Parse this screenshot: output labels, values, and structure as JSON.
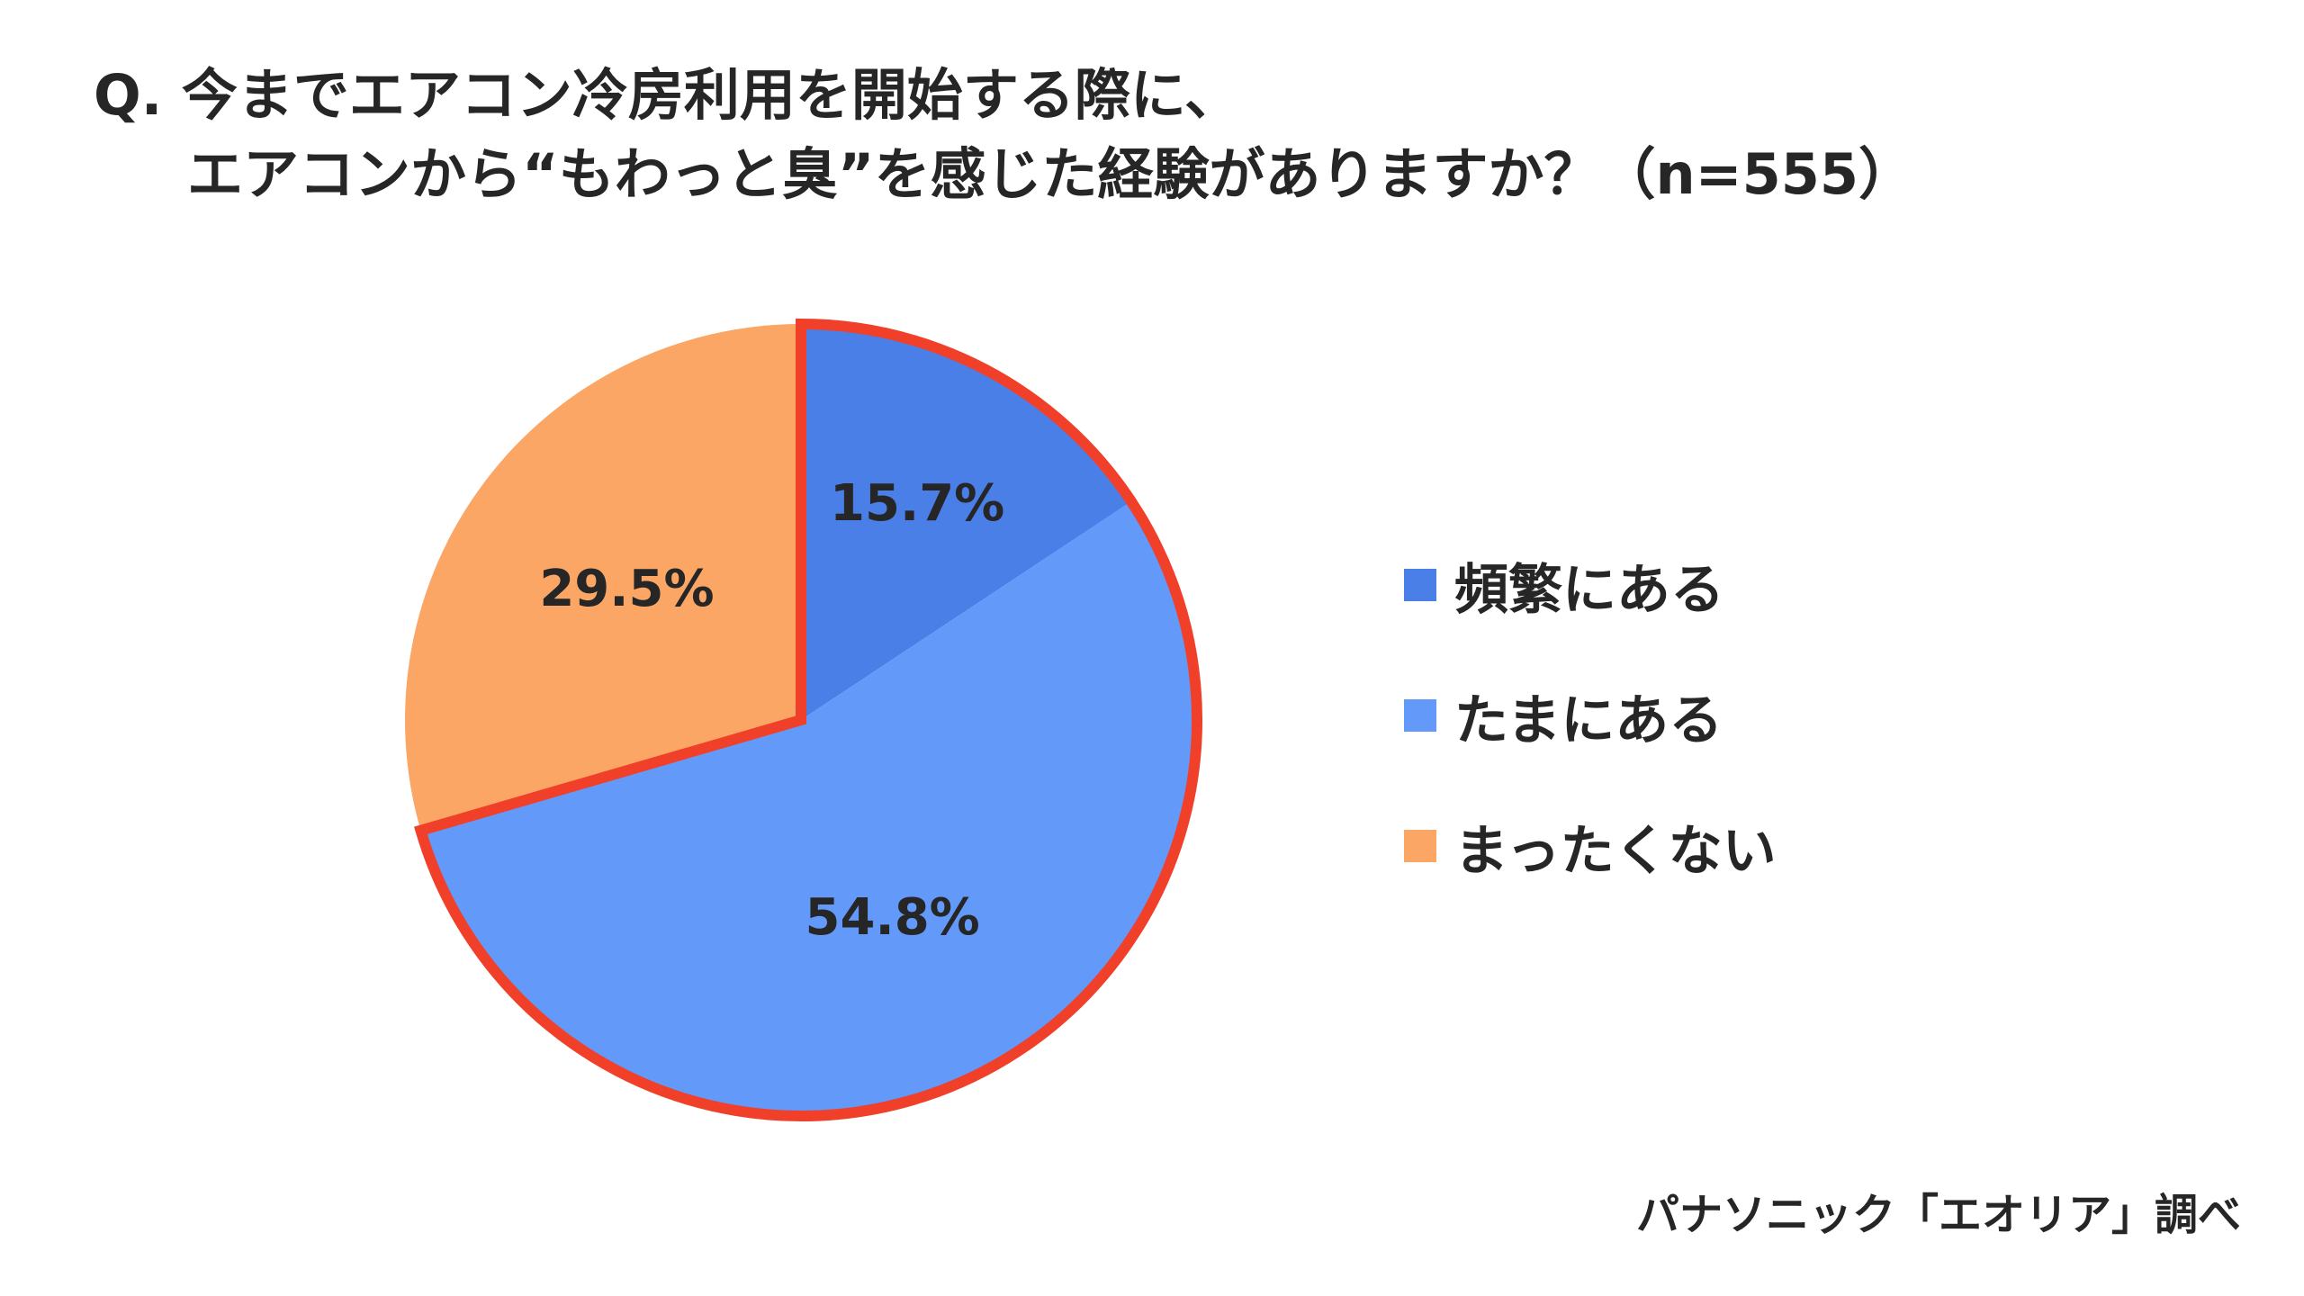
{
  "title": {
    "line1": "Q. 今までエアコン冷房利用を開始する際に、",
    "line2": "エアコンから“もわっと臭”を感じた経験がありますか？（n=555）"
  },
  "chart_data": {
    "type": "pie",
    "n": 555,
    "slices": [
      {
        "label": "頻繁にある",
        "value": 15.7,
        "value_label": "15.7%",
        "color": "#4a7fe8",
        "highlighted": true
      },
      {
        "label": "たまにある",
        "value": 54.8,
        "value_label": "54.8%",
        "color": "#6399f8",
        "highlighted": true
      },
      {
        "label": "まったくない",
        "value": 29.5,
        "value_label": "29.5%",
        "color": "#fba665",
        "highlighted": false
      }
    ],
    "highlight_color": "#f0402a",
    "legend_position": "right",
    "start_angle": "12 o'clock",
    "direction": "clockwise"
  },
  "source": "パナソニック「エオリア」調べ"
}
